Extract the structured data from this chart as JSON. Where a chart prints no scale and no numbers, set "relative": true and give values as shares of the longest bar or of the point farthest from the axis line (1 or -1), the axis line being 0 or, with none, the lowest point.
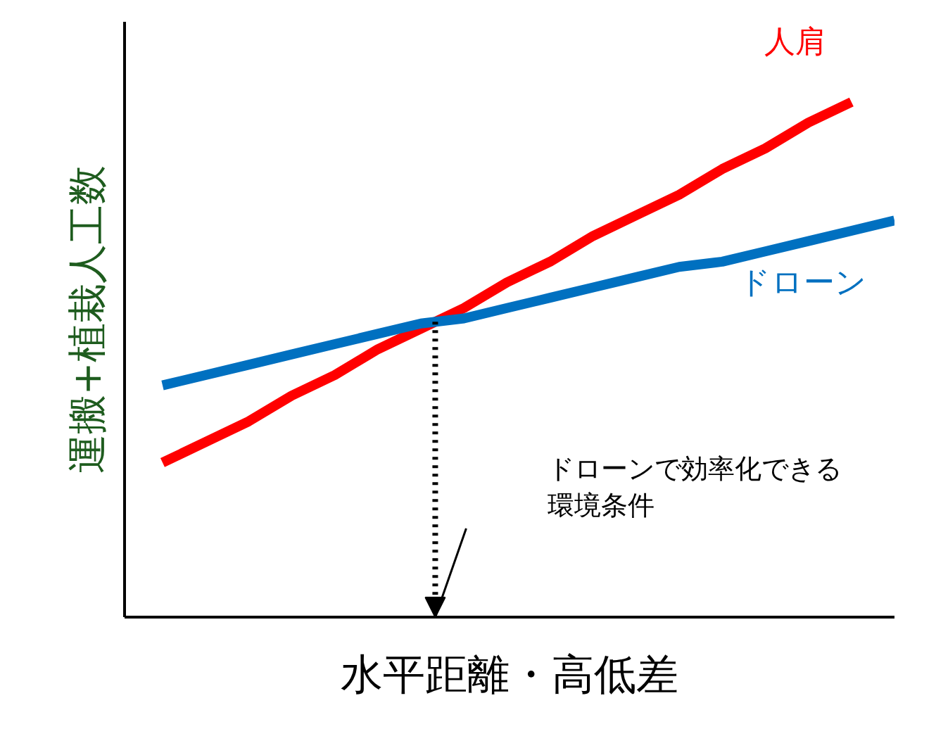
{
  "chart_data": {
    "type": "line",
    "relative": true,
    "xlabel": "水平距離・高低差",
    "ylabel": "運搬+植栽人工数",
    "marker": "none",
    "line_style": "solid",
    "categories": [
      null,
      null,
      null,
      null,
      null,
      null,
      null,
      null,
      null,
      null,
      null,
      null,
      null,
      null,
      null,
      null,
      null,
      null
    ],
    "series": [
      {
        "name": "人肩",
        "color": "#ff0000",
        "values": [
          0.3,
          0.34,
          0.38,
          0.43,
          0.47,
          0.52,
          0.56,
          0.6,
          0.65,
          0.69,
          0.74,
          0.78,
          0.82,
          0.87,
          0.91,
          0.96,
          1.0,
          null
        ]
      },
      {
        "name": "ドローン",
        "color": "#0070c0",
        "values": [
          0.45,
          0.47,
          0.49,
          0.51,
          0.53,
          0.55,
          0.57,
          0.58,
          0.6,
          0.62,
          0.64,
          0.66,
          0.68,
          0.69,
          0.71,
          0.73,
          0.75,
          0.77
        ]
      }
    ],
    "annotations": [
      "ドローンで効率化できる",
      "環境条件"
    ]
  }
}
